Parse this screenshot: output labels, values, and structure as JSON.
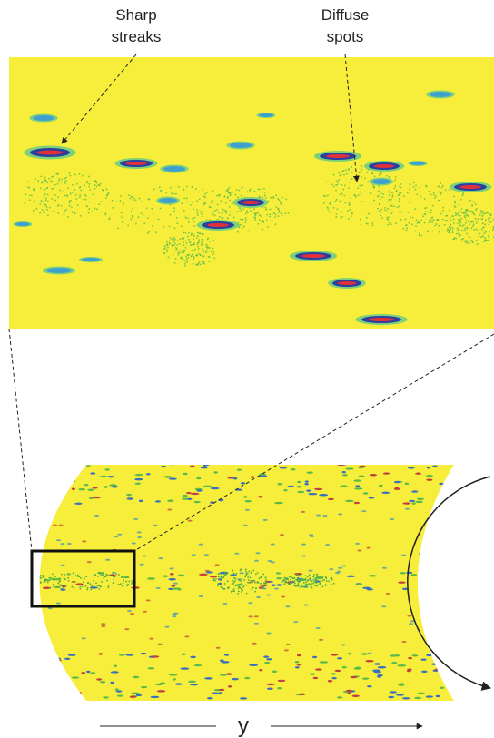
{
  "annotations": [
    {
      "lines": [
        "Sharp",
        "streaks"
      ]
    },
    {
      "lines": [
        "Diffuse",
        "spots"
      ]
    }
  ],
  "axis_label": "y"
}
